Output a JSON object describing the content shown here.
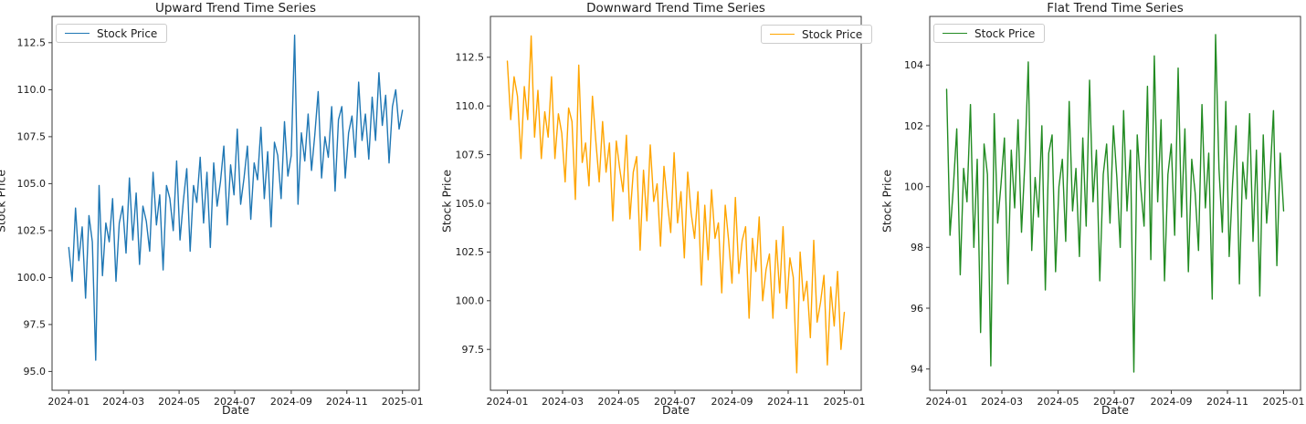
{
  "figure": {
    "background": "#ffffff"
  },
  "legend_label": "Stock Price",
  "chart_data": [
    {
      "type": "line",
      "title": "Upward Trend Time Series",
      "xlabel": "Date",
      "ylabel": "Stock Price",
      "legend": {
        "position": "upper-left",
        "entries": [
          "Stock Price"
        ]
      },
      "grid": false,
      "x_tick_labels": [
        "2024-01",
        "2024-03",
        "2024-05",
        "2024-07",
        "2024-09",
        "2024-11",
        "2025-01"
      ],
      "x_tick_days": [
        0,
        60,
        121,
        182,
        244,
        305,
        366
      ],
      "xlim_days": [
        -18.3,
        384.3
      ],
      "ylim": [
        94.0,
        113.9
      ],
      "y_ticks": [
        112.5,
        110.0,
        107.5,
        105.0,
        102.5,
        100.0,
        97.5,
        95.0
      ],
      "y_tick_labels": [
        "112.5",
        "110.0",
        "107.5",
        "105.0",
        "102.5",
        "100.0",
        "97.5",
        "95.0"
      ],
      "series": [
        {
          "name": "Stock Price",
          "color": "#1f77b4",
          "values": [
            101.6,
            99.8,
            103.7,
            100.9,
            102.7,
            98.9,
            103.3,
            101.9,
            95.6,
            104.9,
            100.1,
            102.9,
            101.9,
            104.2,
            99.8,
            102.9,
            103.8,
            101.3,
            105.3,
            102.0,
            104.5,
            100.7,
            103.8,
            103.0,
            101.4,
            105.6,
            102.8,
            104.4,
            100.4,
            104.9,
            104.2,
            102.5,
            106.2,
            102.0,
            104.1,
            105.8,
            101.4,
            104.9,
            104.0,
            106.4,
            102.9,
            105.6,
            101.6,
            106.1,
            103.8,
            105.1,
            107.0,
            102.8,
            106.0,
            104.4,
            107.9,
            103.9,
            105.3,
            107.0,
            103.1,
            106.1,
            105.2,
            108.0,
            104.2,
            106.7,
            102.7,
            107.2,
            106.5,
            104.2,
            108.3,
            105.4,
            106.5,
            112.9,
            103.9,
            107.7,
            106.2,
            108.7,
            105.7,
            107.6,
            109.9,
            105.3,
            107.5,
            106.4,
            109.1,
            104.6,
            108.4,
            109.1,
            105.3,
            107.7,
            108.6,
            106.4,
            110.4,
            107.3,
            108.7,
            106.3,
            109.6,
            107.3,
            110.9,
            108.1,
            109.7,
            106.1,
            109.1,
            110.0,
            107.9,
            108.9
          ]
        }
      ]
    },
    {
      "type": "line",
      "title": "Downward Trend Time Series",
      "xlabel": "Date",
      "ylabel": "Stock Price",
      "legend": {
        "position": "upper-right",
        "entries": [
          "Stock Price"
        ]
      },
      "grid": false,
      "x_tick_labels": [
        "2024-01",
        "2024-03",
        "2024-05",
        "2024-07",
        "2024-09",
        "2024-11",
        "2025-01"
      ],
      "x_tick_days": [
        0,
        60,
        121,
        182,
        244,
        305,
        366
      ],
      "xlim_days": [
        -18.3,
        384.3
      ],
      "ylim": [
        95.4,
        114.6
      ],
      "y_ticks": [
        112.5,
        110.0,
        107.5,
        105.0,
        102.5,
        100.0,
        97.5
      ],
      "y_tick_labels": [
        "112.5",
        "110.0",
        "107.5",
        "105.0",
        "102.5",
        "100.0",
        "97.5"
      ],
      "series": [
        {
          "name": "Stock Price",
          "color": "#ffa500",
          "values": [
            112.3,
            109.3,
            111.5,
            110.5,
            107.3,
            111.0,
            109.3,
            113.6,
            108.4,
            110.8,
            107.3,
            109.7,
            108.4,
            111.5,
            107.3,
            109.6,
            108.6,
            106.1,
            109.9,
            109.2,
            105.2,
            112.1,
            107.1,
            108.1,
            105.9,
            110.5,
            108.2,
            106.1,
            109.2,
            106.6,
            108.1,
            104.1,
            108.2,
            106.8,
            105.6,
            108.5,
            104.2,
            106.6,
            107.4,
            102.6,
            106.7,
            104.1,
            108.0,
            105.1,
            106.0,
            102.8,
            106.9,
            105.1,
            103.5,
            107.6,
            104.0,
            105.6,
            102.2,
            106.6,
            104.5,
            103.2,
            105.6,
            100.8,
            104.9,
            102.1,
            105.7,
            103.2,
            104.0,
            100.4,
            104.9,
            103.1,
            100.9,
            105.3,
            101.4,
            103.1,
            103.8,
            99.1,
            103.2,
            101.5,
            104.3,
            100.0,
            101.6,
            102.4,
            99.1,
            103.1,
            100.4,
            103.8,
            99.6,
            102.2,
            101.2,
            96.3,
            102.5,
            100.0,
            101.0,
            98.1,
            103.1,
            98.9,
            99.9,
            101.3,
            96.7,
            100.7,
            98.7,
            101.5,
            97.5,
            99.4
          ]
        }
      ]
    },
    {
      "type": "line",
      "title": "Flat Trend Time Series",
      "xlabel": "Date",
      "ylabel": "Stock Price",
      "legend": {
        "position": "upper-left",
        "entries": [
          "Stock Price"
        ]
      },
      "grid": false,
      "x_tick_labels": [
        "2024-01",
        "2024-03",
        "2024-05",
        "2024-07",
        "2024-09",
        "2024-11",
        "2025-01"
      ],
      "x_tick_days": [
        0,
        60,
        121,
        182,
        244,
        305,
        366
      ],
      "xlim_days": [
        -18.3,
        384.3
      ],
      "ylim": [
        93.3,
        105.6
      ],
      "y_ticks": [
        104,
        102,
        100,
        98,
        96,
        94
      ],
      "y_tick_labels": [
        "104",
        "102",
        "100",
        "98",
        "96",
        "94"
      ],
      "series": [
        {
          "name": "Stock Price",
          "color": "#228b22",
          "values": [
            103.2,
            98.4,
            100.0,
            101.9,
            97.1,
            100.6,
            99.5,
            102.7,
            98.0,
            100.9,
            95.2,
            101.4,
            100.4,
            94.1,
            102.4,
            98.8,
            100.1,
            101.6,
            96.8,
            101.2,
            99.3,
            102.2,
            98.5,
            100.8,
            104.1,
            97.9,
            100.3,
            99.0,
            102.0,
            96.6,
            101.1,
            101.7,
            97.2,
            100.0,
            100.9,
            98.2,
            102.8,
            99.2,
            100.6,
            97.7,
            101.6,
            98.7,
            103.5,
            99.5,
            101.2,
            96.9,
            100.4,
            101.4,
            98.8,
            102.0,
            100.3,
            98.0,
            102.5,
            99.2,
            101.2,
            93.9,
            101.7,
            100.0,
            98.7,
            103.3,
            97.6,
            104.3,
            99.5,
            102.2,
            96.9,
            100.4,
            101.4,
            98.4,
            103.9,
            99.0,
            101.9,
            97.2,
            100.9,
            99.8,
            97.9,
            102.7,
            99.3,
            101.1,
            96.3,
            105.0,
            100.6,
            98.5,
            102.8,
            97.7,
            100.1,
            102.0,
            96.8,
            100.8,
            99.6,
            102.4,
            98.2,
            101.2,
            96.4,
            101.7,
            98.8,
            100.3,
            102.5,
            97.4,
            101.1,
            99.2
          ]
        }
      ]
    }
  ]
}
